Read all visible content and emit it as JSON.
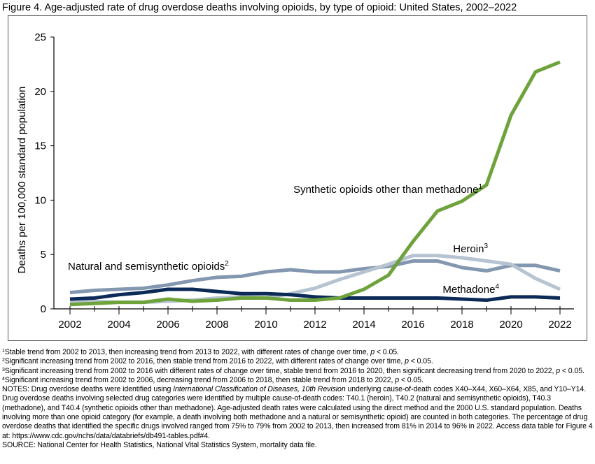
{
  "title": "Figure 4. Age-adjusted rate of drug overdose deaths involving opioids, by type of opioid: United States, 2002–2022",
  "chart_data": {
    "type": "line",
    "title": "Figure 4. Age-adjusted rate of drug overdose deaths involving opioids, by type of opioid: United States, 2002–2022",
    "xlabel": "",
    "ylabel": "Deaths per 100,000 standard population",
    "xlim": [
      2002,
      2022
    ],
    "ylim": [
      0,
      25
    ],
    "xticks": [
      2002,
      2004,
      2006,
      2008,
      2010,
      2012,
      2014,
      2016,
      2018,
      2020,
      2022
    ],
    "yticks": [
      0,
      5,
      10,
      15,
      20,
      25
    ],
    "grid": false,
    "x": [
      2002,
      2003,
      2004,
      2005,
      2006,
      2007,
      2008,
      2009,
      2010,
      2011,
      2012,
      2013,
      2014,
      2015,
      2016,
      2017,
      2018,
      2019,
      2020,
      2021,
      2022
    ],
    "series": [
      {
        "name": "Natural and semisynthetic opioids",
        "sup": "2",
        "color": "#8497b0",
        "values": [
          1.5,
          1.7,
          1.8,
          1.9,
          2.2,
          2.6,
          2.9,
          3.0,
          3.4,
          3.6,
          3.4,
          3.4,
          3.7,
          3.9,
          4.4,
          4.4,
          3.8,
          3.5,
          4.0,
          4.0,
          3.5
        ]
      },
      {
        "name": "Heroin",
        "sup": "3",
        "color": "#b6c3d1",
        "values": [
          0.7,
          0.7,
          0.6,
          0.6,
          0.7,
          0.8,
          1.0,
          1.1,
          1.0,
          1.4,
          1.9,
          2.7,
          3.4,
          4.1,
          4.9,
          4.9,
          4.7,
          4.4,
          4.1,
          2.8,
          1.8
        ]
      },
      {
        "name": "Methadone",
        "sup": "4",
        "color": "#0c2a57",
        "values": [
          0.9,
          1.0,
          1.3,
          1.5,
          1.8,
          1.8,
          1.6,
          1.4,
          1.4,
          1.3,
          1.1,
          1.0,
          1.0,
          1.0,
          1.0,
          1.0,
          0.9,
          0.8,
          1.1,
          1.1,
          1.0
        ]
      },
      {
        "name": "Synthetic opioids other than methadone",
        "sup": "1",
        "color": "#6ea23b",
        "values": [
          0.4,
          0.5,
          0.6,
          0.6,
          0.9,
          0.7,
          0.8,
          1.0,
          1.0,
          0.8,
          0.8,
          1.0,
          1.8,
          3.1,
          6.2,
          9.0,
          9.9,
          11.4,
          17.8,
          21.8,
          22.7
        ]
      }
    ]
  },
  "footnotes": [
    {
      "sup": "1",
      "text": "Stable trend from 2002 to 2013, then increasing trend from 2013 to 2022, with different rates of change over time, ",
      "p": "p",
      "tail": " < 0.05."
    },
    {
      "sup": "2",
      "text": "Significant increasing trend from 2002 to 2016, then stable trend from 2016 to 2022, with different rates of change over time, ",
      "p": "p",
      "tail": " < 0.05."
    },
    {
      "sup": "3",
      "text": "Significant increasing trend from 2002 to 2016 with different rates of change over time, stable trend from 2016 to 2020, then significant decreasing trend from 2020 to 2022, ",
      "p": "p",
      "tail": " < 0.05."
    },
    {
      "sup": "4",
      "text": "Significant increasing trend from 2002 to 2006, decreasing trend from 2006 to 2018, then stable trend from 2018 to 2022, ",
      "p": "p",
      "tail": " < 0.05."
    }
  ],
  "notes": {
    "lead": "NOTES: Drug overdose deaths were identified using ",
    "italic": "International Classification of Diseases, 10th Revision",
    "rest": " underlying cause-of-death codes X40–X44, X60–X64, X85, and Y10–Y14. Drug overdose deaths involving selected drug categories were identified by multiple cause-of-death codes: T40.1 (heroin), T40.2 (natural and semisynthetic opioids), T40.3 (methadone), and T40.4 (synthetic opioids other than methadone). Age-adjusted death rates were calculated using the direct method and the 2000 U.S. standard population. Deaths involving more than one opioid category (for example, a death involving both methadone and a natural or semisynthetic opioid) are counted in both categories. The percentage of drug overdose deaths that identified the specific drugs involved ranged from 75% to 79% from 2002 to 2013, then increased from 81% in 2014 to 96% in 2022. Access data table for Figure 4 at: https://www.cdc.gov/nchs/data/databriefs/db491-tables.pdf#4."
  },
  "source": "SOURCE: National Center for Health Statistics, National Vital Statistics System, mortality data file."
}
